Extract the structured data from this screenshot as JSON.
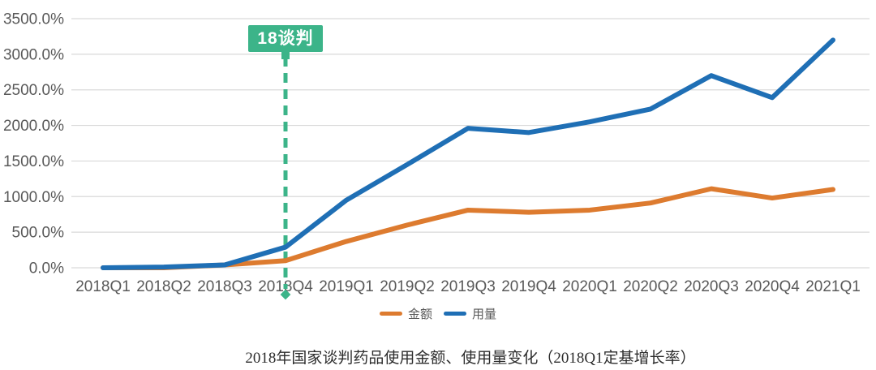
{
  "chart_data": {
    "type": "line",
    "title": "2018年国家谈判药品使用金额、使用量变化（2018Q1定基增长率）",
    "categories": [
      "2018Q1",
      "2018Q2",
      "2018Q3",
      "2018Q4",
      "2019Q1",
      "2019Q2",
      "2019Q3",
      "2019Q4",
      "2020Q1",
      "2020Q2",
      "2020Q3",
      "2020Q4",
      "2021Q1"
    ],
    "series": [
      {
        "name": "金额",
        "color": "#dd7b2f",
        "values": [
          0,
          0,
          40,
          100,
          370,
          600,
          810,
          780,
          810,
          910,
          1110,
          980,
          1100
        ]
      },
      {
        "name": "用量",
        "color": "#1f6fb5",
        "values": [
          0,
          10,
          40,
          290,
          950,
          1450,
          1960,
          1900,
          2050,
          2230,
          2700,
          2390,
          3200
        ]
      }
    ],
    "unit": "%",
    "ylim": [
      0,
      3500
    ],
    "ytick_step": 500,
    "ytick_labels": [
      "0.0%",
      "500.0%",
      "1000.0%",
      "1500.0%",
      "2000.0%",
      "2500.0%",
      "3000.0%",
      "3500.0%"
    ],
    "grid": true,
    "grid_color": "#d9d9d9",
    "tick_label_color": "#595959",
    "legend_position": "bottom",
    "annotation": {
      "label": "18谈判",
      "at": "2018Q4",
      "color": "#3cb489"
    }
  }
}
